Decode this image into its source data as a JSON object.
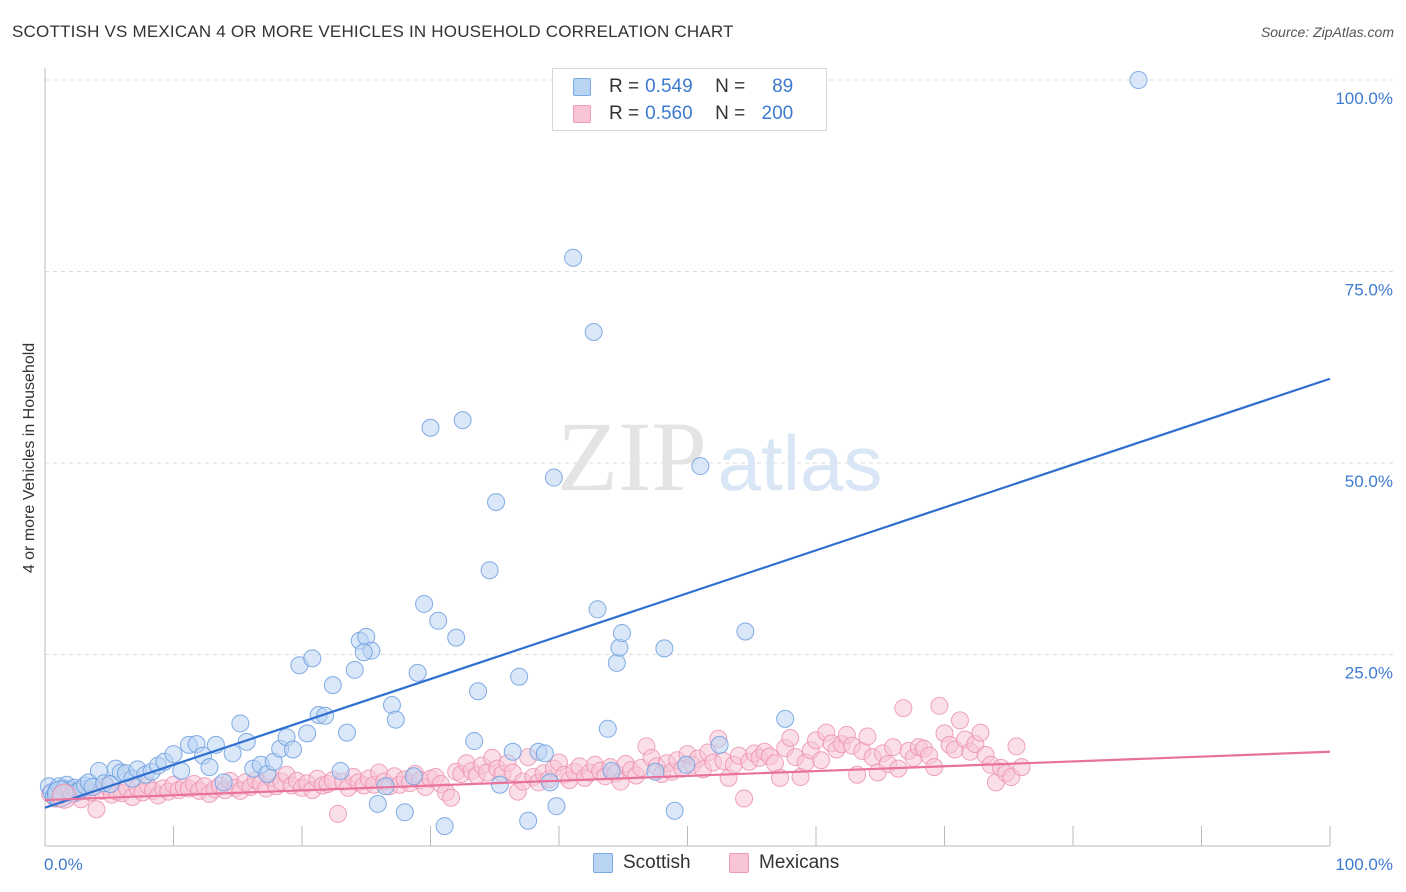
{
  "title": "SCOTTISH VS MEXICAN 4 OR MORE VEHICLES IN HOUSEHOLD CORRELATION CHART",
  "source": "Source: ZipAtlas.com",
  "watermark": {
    "zip": "ZIP",
    "atlas": "atlas"
  },
  "legend": {
    "rows": [
      {
        "r_label": "R =",
        "r_value": "0.549",
        "n_label": "N =",
        "n_value": "89"
      },
      {
        "r_label": "R =",
        "r_value": "0.560",
        "n_label": "N =",
        "n_value": "200"
      }
    ]
  },
  "bottom_legend": [
    "Scottish",
    "Mexicans"
  ],
  "colors": {
    "scottish_fill": "#b9d3f3",
    "scottish_stroke": "#6d9fe0",
    "scottish_line": "#2f6fd0",
    "mexican_fill": "#f7c5d5",
    "mexican_stroke": "#ec93b0",
    "mexican_line": "#e8729a",
    "tick_label": "#3d7bd0",
    "grid": "#dddddd"
  },
  "chart_data": {
    "type": "scatter",
    "title": "SCOTTISH VS MEXICAN 4 OR MORE VEHICLES IN HOUSEHOLD CORRELATION CHART",
    "xlabel": "",
    "ylabel": "4 or more Vehicles in Household",
    "xlim": [
      0,
      100
    ],
    "ylim": [
      0,
      100
    ],
    "x_tick_labels": [
      "0.0%",
      "100.0%"
    ],
    "y_ticks": [
      25,
      50,
      75,
      100
    ],
    "y_tick_labels": [
      "25.0%",
      "50.0%",
      "75.0%",
      "100.0%"
    ],
    "grid": true,
    "legend_position": "top-center",
    "series": [
      {
        "name": "Scottish",
        "R": 0.549,
        "N": 89,
        "trend": {
          "x": [
            0,
            100
          ],
          "y": [
            5.0,
            61.0
          ]
        },
        "points": [
          [
            0.3,
            7.8
          ],
          [
            0.5,
            7.0
          ],
          [
            0.7,
            6.5
          ],
          [
            0.9,
            7.2
          ],
          [
            1.1,
            7.8
          ],
          [
            1.3,
            6.9
          ],
          [
            1.5,
            7.5
          ],
          [
            1.7,
            8.0
          ],
          [
            1.9,
            7.3
          ],
          [
            2.1,
            6.8
          ],
          [
            2.3,
            7.6
          ],
          [
            2.5,
            7.1
          ],
          [
            2.8,
            7.4
          ],
          [
            3.1,
            7.9
          ],
          [
            3.4,
            8.3
          ],
          [
            3.7,
            7.7
          ],
          [
            4.2,
            9.8
          ],
          [
            4.6,
            8.2
          ],
          [
            5.1,
            8.1
          ],
          [
            5.5,
            10.1
          ],
          [
            5.9,
            9.6
          ],
          [
            6.3,
            9.5
          ],
          [
            6.8,
            8.8
          ],
          [
            7.2,
            10.0
          ],
          [
            7.8,
            9.3
          ],
          [
            8.3,
            9.7
          ],
          [
            8.8,
            10.5
          ],
          [
            9.3,
            11.0
          ],
          [
            10.0,
            12.0
          ],
          [
            10.6,
            9.8
          ],
          [
            11.2,
            13.2
          ],
          [
            11.8,
            13.3
          ],
          [
            12.3,
            11.8
          ],
          [
            12.8,
            10.3
          ],
          [
            13.3,
            13.2
          ],
          [
            13.9,
            8.3
          ],
          [
            14.6,
            12.1
          ],
          [
            15.2,
            16.0
          ],
          [
            15.7,
            13.6
          ],
          [
            16.2,
            10.1
          ],
          [
            16.8,
            10.6
          ],
          [
            17.3,
            9.4
          ],
          [
            17.8,
            11.0
          ],
          [
            18.3,
            12.7
          ],
          [
            18.8,
            14.2
          ],
          [
            19.3,
            12.6
          ],
          [
            19.8,
            23.6
          ],
          [
            20.4,
            14.7
          ],
          [
            20.8,
            24.5
          ],
          [
            21.3,
            17.1
          ],
          [
            21.8,
            17.0
          ],
          [
            22.4,
            21.0
          ],
          [
            23.0,
            9.8
          ],
          [
            23.5,
            14.8
          ],
          [
            24.1,
            23.0
          ],
          [
            24.5,
            26.8
          ],
          [
            25.0,
            27.3
          ],
          [
            25.4,
            25.5
          ],
          [
            24.8,
            25.3
          ],
          [
            25.9,
            5.5
          ],
          [
            26.5,
            7.8
          ],
          [
            27.0,
            18.4
          ],
          [
            27.3,
            16.5
          ],
          [
            28.0,
            4.4
          ],
          [
            28.7,
            9.1
          ],
          [
            29.0,
            22.6
          ],
          [
            29.5,
            31.6
          ],
          [
            30.0,
            54.6
          ],
          [
            30.6,
            29.4
          ],
          [
            31.1,
            2.6
          ],
          [
            32.0,
            27.2
          ],
          [
            32.5,
            55.6
          ],
          [
            33.4,
            13.7
          ],
          [
            33.7,
            20.2
          ],
          [
            34.6,
            36.0
          ],
          [
            35.1,
            44.9
          ],
          [
            35.4,
            8.0
          ],
          [
            36.4,
            12.3
          ],
          [
            36.9,
            22.1
          ],
          [
            37.6,
            3.3
          ],
          [
            38.4,
            12.3
          ],
          [
            38.9,
            12.1
          ],
          [
            39.3,
            8.3
          ],
          [
            39.6,
            48.1
          ],
          [
            39.8,
            5.2
          ],
          [
            41.1,
            76.8
          ],
          [
            42.7,
            67.1
          ],
          [
            43.0,
            30.9
          ],
          [
            43.8,
            15.3
          ],
          [
            44.1,
            9.8
          ],
          [
            44.5,
            23.9
          ],
          [
            44.7,
            25.9
          ],
          [
            44.9,
            27.8
          ],
          [
            47.5,
            9.7
          ],
          [
            48.2,
            25.8
          ],
          [
            49.0,
            4.6
          ],
          [
            49.9,
            10.6
          ],
          [
            51.0,
            49.6
          ],
          [
            52.5,
            13.2
          ],
          [
            54.5,
            28.0
          ],
          [
            57.6,
            16.6
          ],
          [
            85.1,
            100.0
          ]
        ]
      },
      {
        "name": "Mexicans",
        "R": 0.56,
        "N": 200,
        "trend": {
          "x": [
            0,
            100
          ],
          "y": [
            6.0,
            12.3
          ]
        },
        "points": [
          [
            0.4,
            6.8
          ],
          [
            0.8,
            6.2
          ],
          [
            1.2,
            7.0
          ],
          [
            1.6,
            6.5
          ],
          [
            2.0,
            7.3
          ],
          [
            2.4,
            6.9
          ],
          [
            2.8,
            6.1
          ],
          [
            3.2,
            7.4
          ],
          [
            3.6,
            7.0
          ],
          [
            4.0,
            4.8
          ],
          [
            4.4,
            7.2
          ],
          [
            4.8,
            7.8
          ],
          [
            5.2,
            6.7
          ],
          [
            5.6,
            7.1
          ],
          [
            6.0,
            6.9
          ],
          [
            6.4,
            7.5
          ],
          [
            6.8,
            6.4
          ],
          [
            7.2,
            7.6
          ],
          [
            7.6,
            7.0
          ],
          [
            8.0,
            7.9
          ],
          [
            8.4,
            7.2
          ],
          [
            8.8,
            6.6
          ],
          [
            9.2,
            7.5
          ],
          [
            9.6,
            7.1
          ],
          [
            10.0,
            8.0
          ],
          [
            10.4,
            7.3
          ],
          [
            10.8,
            7.7
          ],
          [
            11.2,
            7.5
          ],
          [
            11.6,
            8.1
          ],
          [
            12.0,
            7.2
          ],
          [
            12.4,
            7.8
          ],
          [
            12.8,
            6.8
          ],
          [
            13.2,
            7.4
          ],
          [
            13.6,
            7.9
          ],
          [
            14.0,
            7.3
          ],
          [
            14.4,
            8.5
          ],
          [
            14.8,
            7.6
          ],
          [
            15.2,
            7.2
          ],
          [
            15.6,
            8.3
          ],
          [
            16.0,
            7.7
          ],
          [
            16.4,
            8.6
          ],
          [
            16.8,
            8.1
          ],
          [
            17.2,
            7.5
          ],
          [
            17.6,
            8.9
          ],
          [
            18.0,
            7.8
          ],
          [
            18.4,
            8.4
          ],
          [
            18.8,
            9.3
          ],
          [
            19.2,
            7.9
          ],
          [
            19.6,
            8.5
          ],
          [
            20.0,
            7.6
          ],
          [
            20.4,
            8.2
          ],
          [
            20.8,
            7.3
          ],
          [
            21.2,
            8.8
          ],
          [
            21.6,
            7.9
          ],
          [
            22.0,
            8.1
          ],
          [
            22.4,
            8.6
          ],
          [
            22.8,
            4.2
          ],
          [
            23.2,
            8.4
          ],
          [
            23.6,
            7.6
          ],
          [
            24.0,
            9.0
          ],
          [
            24.4,
            8.3
          ],
          [
            24.8,
            7.9
          ],
          [
            25.2,
            8.8
          ],
          [
            25.6,
            8.0
          ],
          [
            26.0,
            9.6
          ],
          [
            26.4,
            8.4
          ],
          [
            26.8,
            7.8
          ],
          [
            27.2,
            9.1
          ],
          [
            27.6,
            8.0
          ],
          [
            28.0,
            8.7
          ],
          [
            28.4,
            8.2
          ],
          [
            28.8,
            9.4
          ],
          [
            29.2,
            8.6
          ],
          [
            29.6,
            7.7
          ],
          [
            30.0,
            8.8
          ],
          [
            30.4,
            9.0
          ],
          [
            30.8,
            8.1
          ],
          [
            31.2,
            7.0
          ],
          [
            31.6,
            6.3
          ],
          [
            32.0,
            9.7
          ],
          [
            32.4,
            9.4
          ],
          [
            32.8,
            10.8
          ],
          [
            33.2,
            9.8
          ],
          [
            33.6,
            9.2
          ],
          [
            34.0,
            10.5
          ],
          [
            34.4,
            9.6
          ],
          [
            34.8,
            11.5
          ],
          [
            35.2,
            10.1
          ],
          [
            35.6,
            9.4
          ],
          [
            36.0,
            10.8
          ],
          [
            36.4,
            9.6
          ],
          [
            36.8,
            7.1
          ],
          [
            37.2,
            8.4
          ],
          [
            37.6,
            11.6
          ],
          [
            38.0,
            9.0
          ],
          [
            38.4,
            8.3
          ],
          [
            38.8,
            9.5
          ],
          [
            39.2,
            8.7
          ],
          [
            39.6,
            10.1
          ],
          [
            40.0,
            10.9
          ],
          [
            40.4,
            9.3
          ],
          [
            40.8,
            8.6
          ],
          [
            41.2,
            9.7
          ],
          [
            41.6,
            10.4
          ],
          [
            42.0,
            8.9
          ],
          [
            42.4,
            9.6
          ],
          [
            42.8,
            10.6
          ],
          [
            43.2,
            9.8
          ],
          [
            43.6,
            9.1
          ],
          [
            44.0,
            10.3
          ],
          [
            44.4,
            9.5
          ],
          [
            44.8,
            8.4
          ],
          [
            45.2,
            10.7
          ],
          [
            45.6,
            9.9
          ],
          [
            46.0,
            9.2
          ],
          [
            46.4,
            10.2
          ],
          [
            46.8,
            13.0
          ],
          [
            47.2,
            11.5
          ],
          [
            47.6,
            10.4
          ],
          [
            48.0,
            9.4
          ],
          [
            48.4,
            10.8
          ],
          [
            48.8,
            9.7
          ],
          [
            49.2,
            11.2
          ],
          [
            49.6,
            10.1
          ],
          [
            50.0,
            12.0
          ],
          [
            50.4,
            10.6
          ],
          [
            50.8,
            11.4
          ],
          [
            51.2,
            10.0
          ],
          [
            51.6,
            12.2
          ],
          [
            52.0,
            10.9
          ],
          [
            52.4,
            14.0
          ],
          [
            52.8,
            11.1
          ],
          [
            53.2,
            8.9
          ],
          [
            53.6,
            10.6
          ],
          [
            54.0,
            11.8
          ],
          [
            54.4,
            6.2
          ],
          [
            54.8,
            11.0
          ],
          [
            55.2,
            12.1
          ],
          [
            55.6,
            11.5
          ],
          [
            56.0,
            12.3
          ],
          [
            56.4,
            11.7
          ],
          [
            56.8,
            10.8
          ],
          [
            57.2,
            8.9
          ],
          [
            57.6,
            12.8
          ],
          [
            58.0,
            14.1
          ],
          [
            58.4,
            11.6
          ],
          [
            58.8,
            9.0
          ],
          [
            59.2,
            10.9
          ],
          [
            59.6,
            12.5
          ],
          [
            60.0,
            13.8
          ],
          [
            60.4,
            11.2
          ],
          [
            60.8,
            14.8
          ],
          [
            61.2,
            13.4
          ],
          [
            61.6,
            12.6
          ],
          [
            62.0,
            13.3
          ],
          [
            62.4,
            14.5
          ],
          [
            62.8,
            13.1
          ],
          [
            63.2,
            9.3
          ],
          [
            63.6,
            12.4
          ],
          [
            64.0,
            14.3
          ],
          [
            64.4,
            11.6
          ],
          [
            64.8,
            9.6
          ],
          [
            65.2,
            12.1
          ],
          [
            65.6,
            10.7
          ],
          [
            66.0,
            12.9
          ],
          [
            66.4,
            10.1
          ],
          [
            66.8,
            18.0
          ],
          [
            67.2,
            12.4
          ],
          [
            67.6,
            11.5
          ],
          [
            68.0,
            12.9
          ],
          [
            68.4,
            12.7
          ],
          [
            68.8,
            11.8
          ],
          [
            69.2,
            10.3
          ],
          [
            69.6,
            18.3
          ],
          [
            70.0,
            14.7
          ],
          [
            70.4,
            13.2
          ],
          [
            70.8,
            12.6
          ],
          [
            71.2,
            16.4
          ],
          [
            71.6,
            13.9
          ],
          [
            72.0,
            12.3
          ],
          [
            72.4,
            13.3
          ],
          [
            72.8,
            14.8
          ],
          [
            73.2,
            11.9
          ],
          [
            73.6,
            10.6
          ],
          [
            74.0,
            8.3
          ],
          [
            74.4,
            10.2
          ],
          [
            74.8,
            9.5
          ],
          [
            75.2,
            9.0
          ],
          [
            75.6,
            13.0
          ],
          [
            76.0,
            10.3
          ]
        ]
      }
    ]
  }
}
